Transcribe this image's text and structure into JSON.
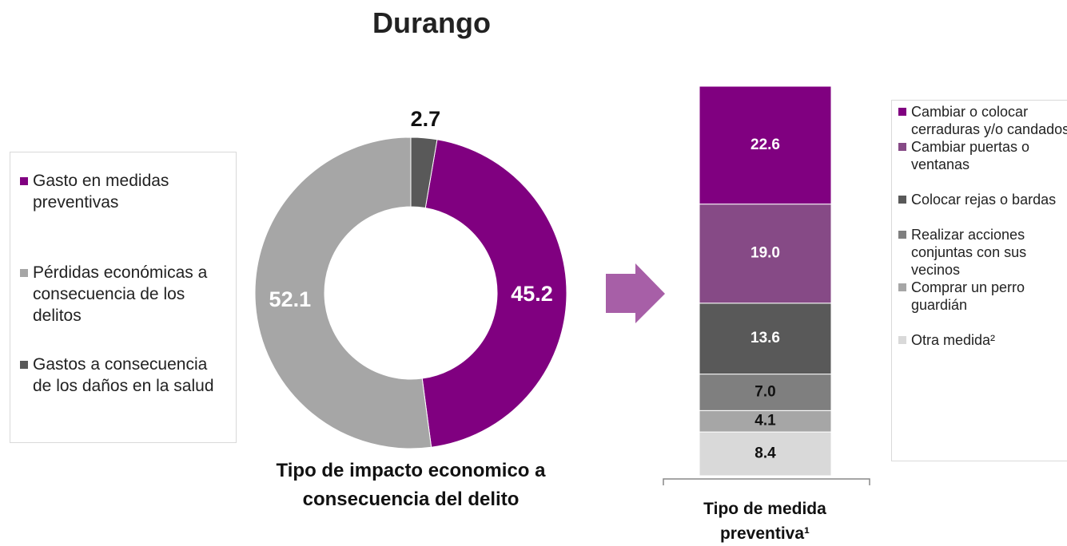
{
  "title": "Durango",
  "chart_data": [
    {
      "type": "donut",
      "caption": "Tipo de impacto economico a consecuencia del delito",
      "categories": [
        "Gasto en medidas preventivas",
        "Pérdidas económicas a consecuencia de los delitos",
        "Gastos a consecuencia de los daños en la salud"
      ],
      "values": [
        45.2,
        52.1,
        2.7
      ],
      "colors": [
        "#800080",
        "#a6a6a6",
        "#595959"
      ]
    },
    {
      "type": "stacked-bar",
      "caption": "Tipo de medida preventiva¹",
      "series": [
        {
          "name": "Cambiar o colocar cerraduras y/o candados",
          "color": "#800080",
          "values": [
            22.6
          ]
        },
        {
          "name": "Cambiar puertas o ventanas",
          "color": "#864a86",
          "values": [
            19.0
          ],
          "value_labels": [
            "19.0"
          ]
        },
        {
          "name": "Colocar rejas o bardas",
          "color": "#595959",
          "values": [
            13.6
          ]
        },
        {
          "name": "Realizar acciones conjuntas con sus vecinos",
          "color": "#7f7f7f",
          "values": [
            7.0
          ],
          "value_labels": [
            "7.0"
          ]
        },
        {
          "name": "Comprar un perro guardián",
          "color": "#a6a6a6",
          "values": [
            4.1
          ]
        },
        {
          "name": "Otra medida²",
          "color": "#d9d9d9",
          "values": [
            8.4
          ]
        }
      ]
    }
  ]
}
